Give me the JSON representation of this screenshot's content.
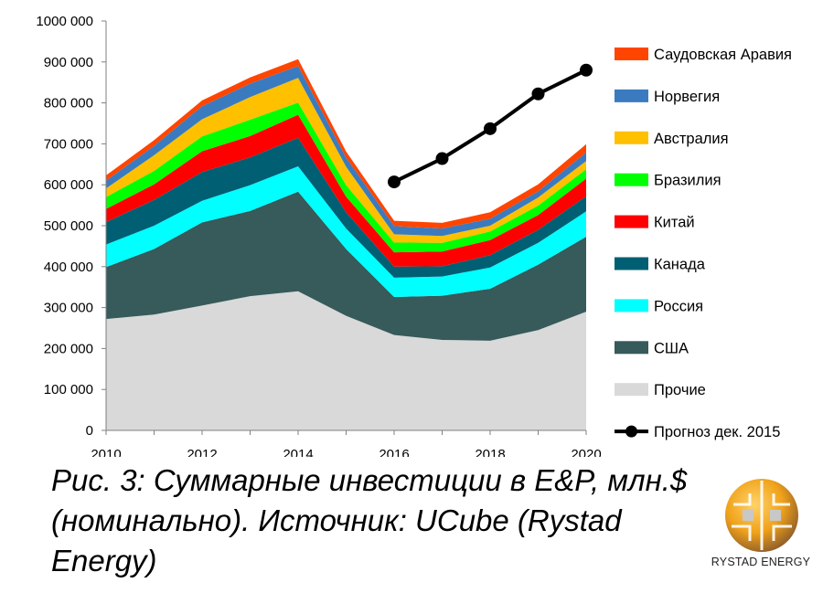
{
  "chart_data": {
    "type": "area",
    "stacked": true,
    "x": [
      2010,
      2011,
      2012,
      2013,
      2014,
      2015,
      2016,
      2017,
      2018,
      2019,
      2020
    ],
    "xlim": [
      2010,
      2020
    ],
    "ylim": [
      0,
      1000000
    ],
    "x_ticks": [
      "2010",
      "2012",
      "2014",
      "2016",
      "2018",
      "2020"
    ],
    "y_ticks": [
      "0",
      "100 000",
      "200 000",
      "300 000",
      "400 000",
      "500 000",
      "600 000",
      "700 000",
      "800 000",
      "900 000",
      "1000 000"
    ],
    "series": [
      {
        "name": "Прочие",
        "color": "#d9d9d9",
        "values": [
          272000,
          283000,
          305000,
          328000,
          340000,
          280000,
          233000,
          221000,
          219000,
          245000,
          290000
        ]
      },
      {
        "name": "США",
        "color": "#375a5a",
        "values": [
          127000,
          160000,
          203000,
          208000,
          243000,
          163000,
          93000,
          108000,
          127000,
          160000,
          183000
        ]
      },
      {
        "name": "Россия",
        "color": "#00ffff",
        "values": [
          55000,
          57000,
          53000,
          63000,
          62000,
          50000,
          47000,
          47000,
          52000,
          53000,
          62000
        ]
      },
      {
        "name": "Канада",
        "color": "#005f73",
        "values": [
          55000,
          63000,
          70000,
          68000,
          70000,
          40000,
          27000,
          25000,
          30000,
          32000,
          37000
        ]
      },
      {
        "name": "Китай",
        "color": "#ff0000",
        "values": [
          32000,
          38000,
          51000,
          52000,
          56000,
          38000,
          35000,
          36000,
          37000,
          36000,
          43000
        ]
      },
      {
        "name": "Бразилия",
        "color": "#00ff00",
        "values": [
          29000,
          33000,
          36000,
          40000,
          30000,
          28000,
          24000,
          21000,
          21000,
          23000,
          23000
        ]
      },
      {
        "name": "Австралия",
        "color": "#ffc000",
        "values": [
          21000,
          38000,
          42000,
          55000,
          60000,
          45000,
          20000,
          17000,
          14000,
          20000,
          20000
        ]
      },
      {
        "name": "Норвегия",
        "color": "#3a7bbf",
        "values": [
          19000,
          23000,
          32000,
          33000,
          29000,
          22000,
          20000,
          18000,
          17000,
          15000,
          21000
        ]
      },
      {
        "name": "Саудовская Аравия",
        "color": "#ff4500",
        "values": [
          13000,
          14000,
          14000,
          15000,
          17000,
          15000,
          13000,
          14000,
          16000,
          17000,
          20000
        ]
      }
    ],
    "forecast": {
      "name": "Прогноз дек. 2015",
      "color": "#000000",
      "x": [
        2016,
        2017,
        2018,
        2019,
        2020
      ],
      "values": [
        607000,
        664000,
        737000,
        822000,
        880000
      ]
    }
  },
  "caption": "Рис. 3: Суммарные инвестиции в E&P, млн.$ (номинально). Источник: UCube (Rystad Energy)",
  "logo": {
    "text": "RYSTAD ENERGY",
    "colors": [
      "#f0a21a",
      "#8a5a2b",
      "#c8c8c8"
    ]
  }
}
